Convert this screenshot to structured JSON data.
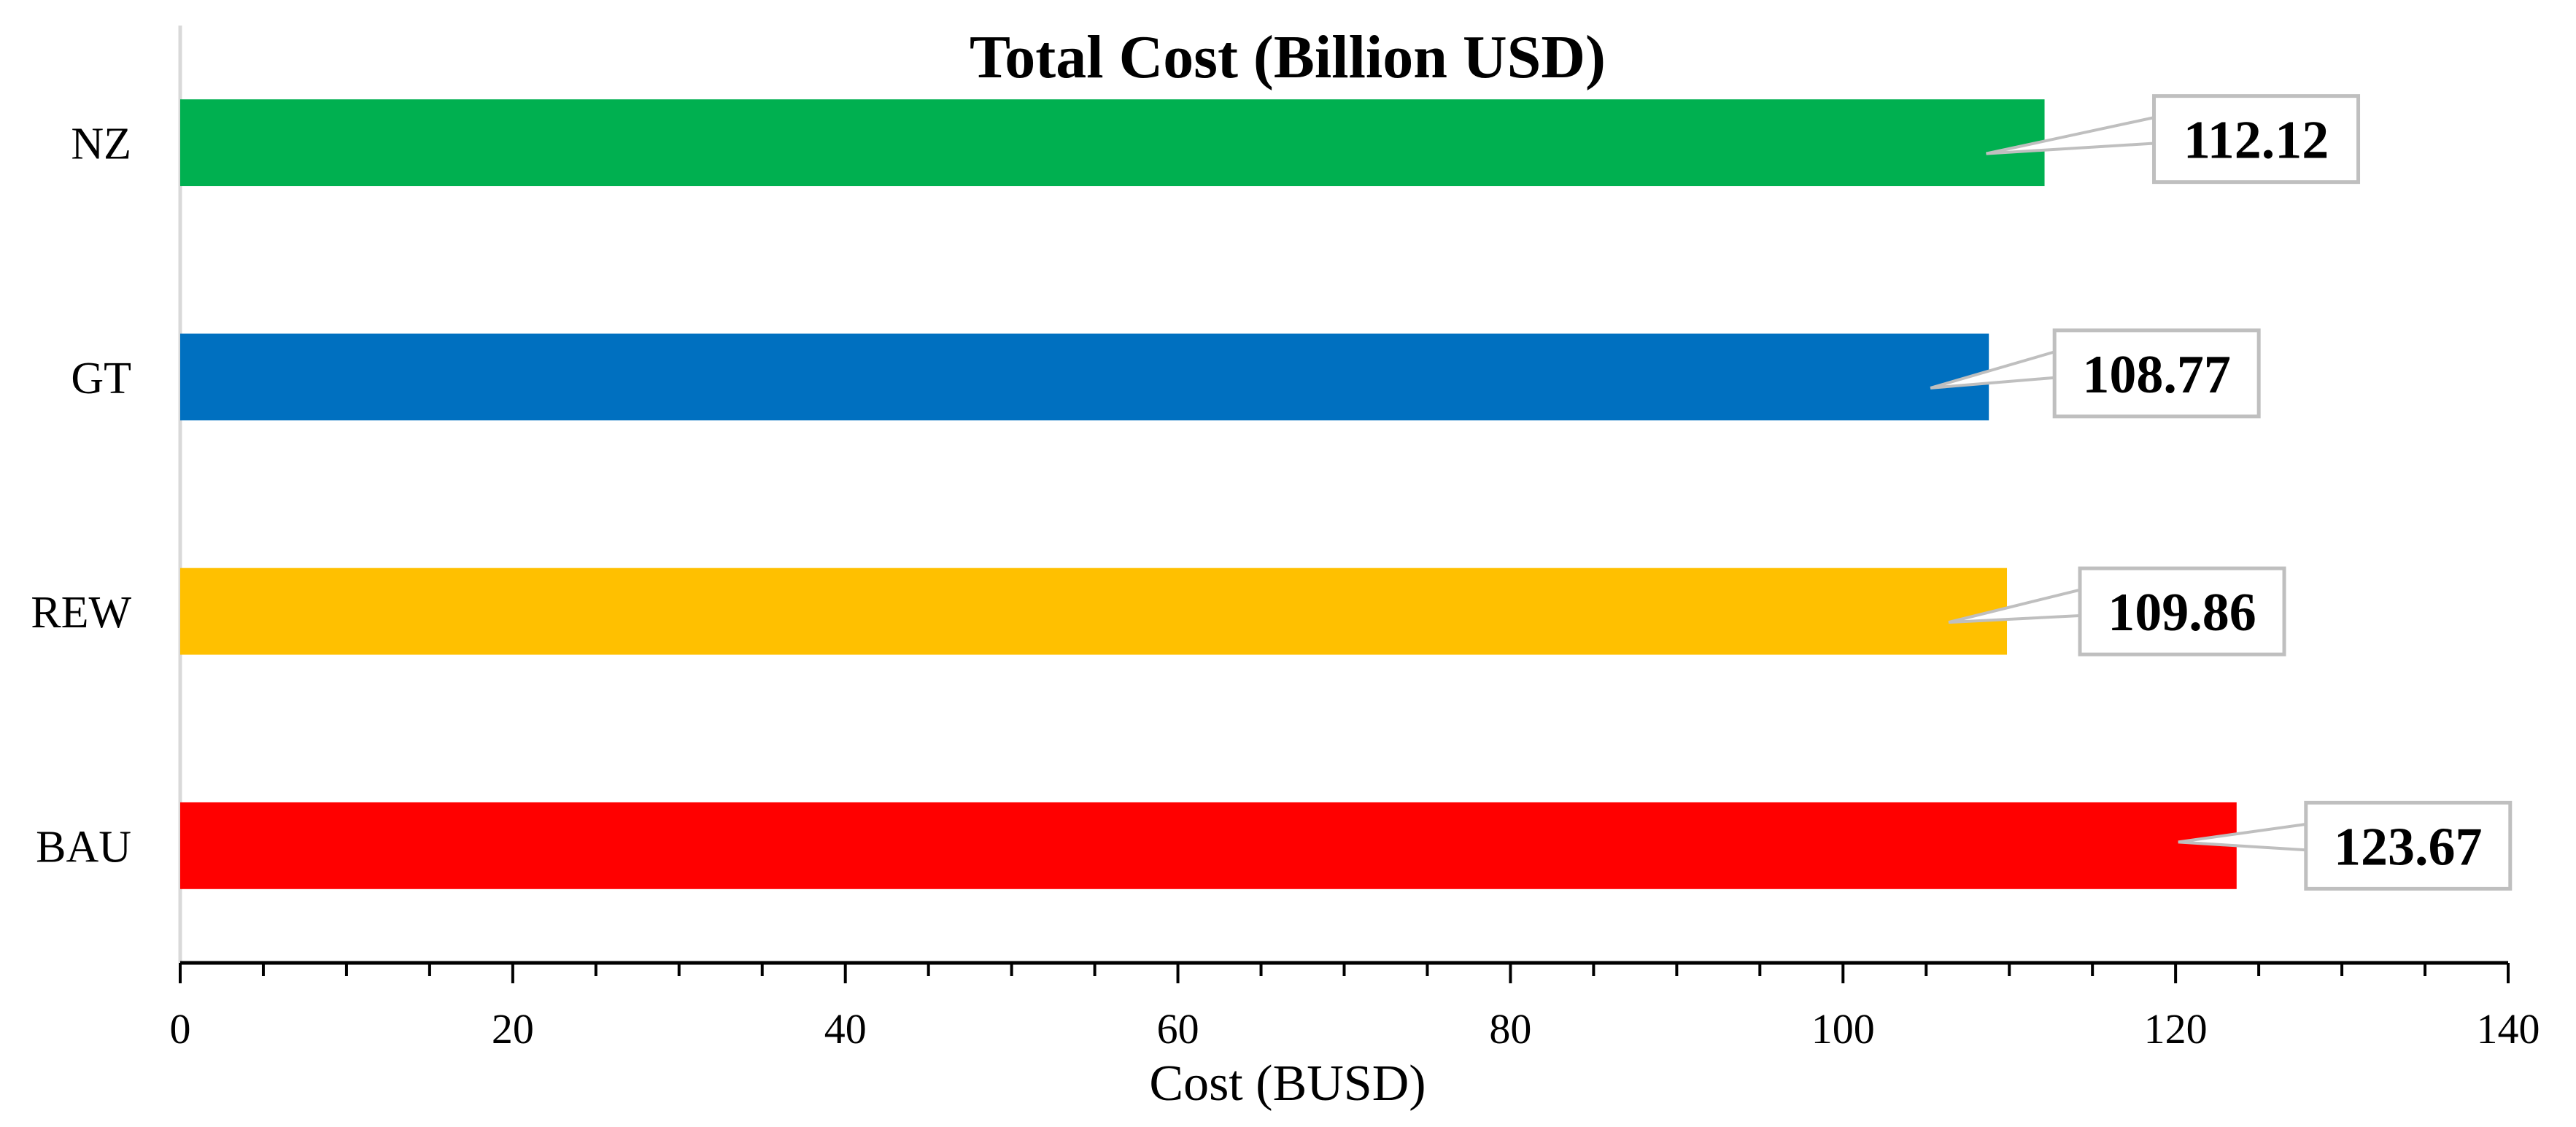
{
  "chart_data": {
    "type": "bar",
    "orientation": "horizontal",
    "title": "Total Cost (Billion USD)",
    "xlabel": "Cost (BUSD)",
    "ylabel": "",
    "categories": [
      "NZ",
      "GT",
      "REW",
      "BAU"
    ],
    "values": [
      112.12,
      108.77,
      109.86,
      123.67
    ],
    "data_labels": [
      "112.12",
      "108.77",
      "109.86",
      "123.67"
    ],
    "colors": [
      "#00B050",
      "#0070C0",
      "#FFC000",
      "#FF0000"
    ],
    "xlim": [
      0,
      140
    ],
    "x_ticks": [
      0,
      20,
      40,
      60,
      80,
      100,
      120,
      140
    ],
    "x_tick_labels": [
      "0",
      "20",
      "40",
      "60",
      "80",
      "100",
      "120",
      "140"
    ],
    "grid": false,
    "legend": "none"
  }
}
